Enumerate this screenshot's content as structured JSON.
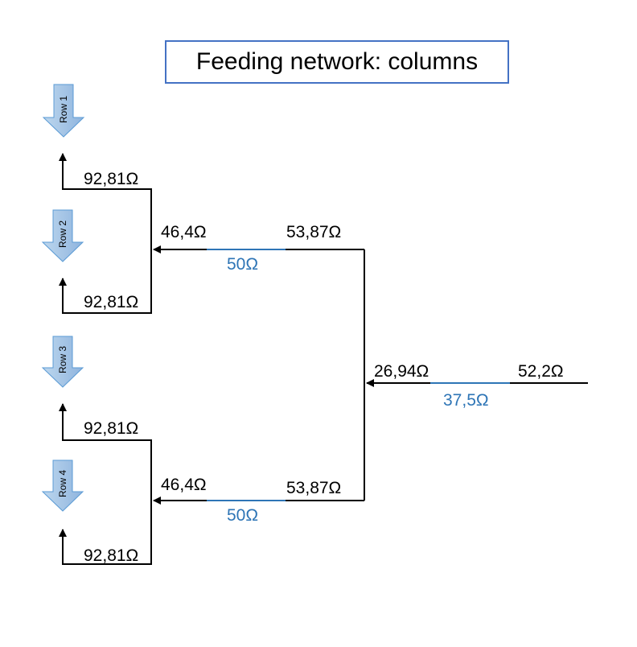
{
  "title": "Feeding network: columns",
  "rows": [
    "Row 1",
    "Row 2",
    "Row 3",
    "Row 4"
  ],
  "labels": {
    "leaf_impedance": "92,81Ω",
    "branch_in": "46,4Ω",
    "branch_line": "50Ω",
    "branch_out": "53,87Ω",
    "trunk_in": "26,94Ω",
    "trunk_line": "37,5Ω",
    "source": "52,2Ω"
  },
  "colors": {
    "title_border": "#4472C4",
    "line_accent": "#2E75B6",
    "arrow_fill": "#9DC3E6",
    "arrow_stroke": "#5B9BD5",
    "line": "#000000"
  }
}
